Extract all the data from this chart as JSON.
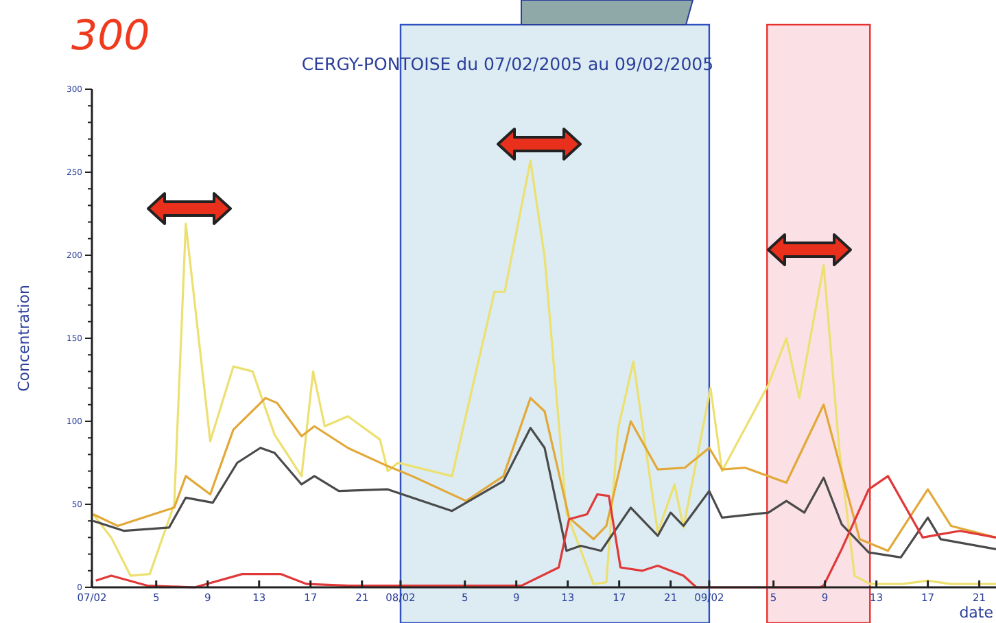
{
  "chart_data": {
    "type": "line",
    "title": "CERGY-PONTOISE du 07/02/2005 au 09/02/2005",
    "xlabel": "date",
    "ylabel": "Concentration",
    "annotations": [
      "300"
    ],
    "xlim": [
      "2005-02-07T00:00",
      "2005-02-09T22:18"
    ],
    "ylim": [
      0,
      300
    ],
    "xticks": [
      {
        "value": "2005-02-07T00:00",
        "label": "07/02"
      },
      {
        "value": "2005-02-07T05:00",
        "label": "5"
      },
      {
        "value": "2005-02-07T09:00",
        "label": "9"
      },
      {
        "value": "2005-02-07T13:00",
        "label": "13"
      },
      {
        "value": "2005-02-07T17:00",
        "label": "17"
      },
      {
        "value": "2005-02-07T21:00",
        "label": "21"
      },
      {
        "value": "2005-02-08T00:00",
        "label": "08/02"
      },
      {
        "value": "2005-02-08T05:00",
        "label": "5"
      },
      {
        "value": "2005-02-08T09:00",
        "label": "9"
      },
      {
        "value": "2005-02-08T13:00",
        "label": "13"
      },
      {
        "value": "2005-02-08T17:00",
        "label": "17"
      },
      {
        "value": "2005-02-08T21:00",
        "label": "21"
      },
      {
        "value": "2005-02-09T00:00",
        "label": "09/02"
      },
      {
        "value": "2005-02-09T05:00",
        "label": "5"
      },
      {
        "value": "2005-02-09T09:00",
        "label": "9"
      },
      {
        "value": "2005-02-09T13:00",
        "label": "13"
      },
      {
        "value": "2005-02-09T17:00",
        "label": "17"
      },
      {
        "value": "2005-02-09T21:00",
        "label": "21"
      }
    ],
    "yticks": [
      0,
      {
        "value": 10,
        "label": null
      },
      {
        "value": 20,
        "label": null
      },
      {
        "value": 30,
        "label": null
      },
      {
        "value": 40,
        "label": null
      },
      50,
      {
        "value": 60,
        "label": null
      },
      {
        "value": 70,
        "label": null
      },
      {
        "value": 80,
        "label": null
      },
      {
        "value": 90,
        "label": null
      },
      100,
      {
        "value": 110,
        "label": null
      },
      {
        "value": 120,
        "label": null
      },
      {
        "value": 130,
        "label": null
      },
      {
        "value": 140,
        "label": null
      },
      150,
      {
        "value": 160,
        "label": null
      },
      {
        "value": 170,
        "label": null
      },
      {
        "value": 180,
        "label": null
      },
      {
        "value": 190,
        "label": null
      },
      200,
      {
        "value": 210,
        "label": null
      },
      {
        "value": 220,
        "label": null
      },
      {
        "value": 230,
        "label": null
      },
      {
        "value": 240,
        "label": null
      },
      250,
      {
        "value": 260,
        "label": null
      },
      {
        "value": 270,
        "label": null
      },
      {
        "value": 280,
        "label": null
      },
      {
        "value": 290,
        "label": null
      },
      300
    ],
    "grid": false,
    "marker": "none",
    "line_style": "solid",
    "bands": [
      {
        "axis": "x",
        "from": "2005-02-08T00:00",
        "to": "2005-02-09T00:00",
        "color": "#dcecf2"
      },
      {
        "axis": "x",
        "from": "2005-02-09T04:30",
        "to": "2005-02-09T12:30",
        "color": "#fbe0e6"
      }
    ],
    "series": [
      {
        "color": "#ece070",
        "x": [
          "2005-02-07T00:06",
          "2005-02-07T01:30",
          "2005-02-07T03:00",
          "2005-02-07T04:30",
          "2005-02-07T06:24",
          "2005-02-07T07:18",
          "2005-02-07T09:12",
          "2005-02-07T11:00",
          "2005-02-07T12:30",
          "2005-02-07T14:12",
          "2005-02-07T16:18",
          "2005-02-07T17:12",
          "2005-02-07T18:06",
          "2005-02-07T19:54",
          "2005-02-07T22:24",
          "2005-02-07T23:00",
          "2005-02-07T23:48",
          "2005-02-08T04:00",
          "2005-02-08T07:18",
          "2005-02-08T08:06",
          "2005-02-08T10:06",
          "2005-02-08T11:12",
          "2005-02-08T12:54",
          "2005-02-08T15:00",
          "2005-02-08T16:00",
          "2005-02-08T16:54",
          "2005-02-08T18:06",
          "2005-02-08T20:00",
          "2005-02-08T21:18",
          "2005-02-08T22:00",
          "2005-02-09T00:06",
          "2005-02-09T01:00",
          "2005-02-09T04:36",
          "2005-02-09T06:00",
          "2005-02-09T07:00",
          "2005-02-09T08:54",
          "2005-02-09T10:06",
          "2005-02-09T11:18",
          "2005-02-09T12:30",
          "2005-02-09T15:00",
          "2005-02-09T17:00",
          "2005-02-09T18:48",
          "2005-02-09T22:18"
        ],
        "values": [
          44,
          30,
          7,
          8,
          50,
          219,
          88,
          133,
          130,
          92,
          67,
          130,
          97,
          103,
          89,
          70,
          75,
          67,
          178,
          178,
          257,
          199,
          45,
          2,
          3,
          95,
          136,
          33,
          62,
          36,
          120,
          70,
          122,
          150,
          114,
          194,
          84,
          7,
          2,
          2,
          4,
          2,
          2
        ]
      },
      {
        "color": "#e2a838",
        "x": [
          "2005-02-07T00:06",
          "2005-02-07T02:00",
          "2005-02-07T06:24",
          "2005-02-07T07:18",
          "2005-02-07T09:12",
          "2005-02-07T11:00",
          "2005-02-07T13:30",
          "2005-02-07T14:24",
          "2005-02-07T16:18",
          "2005-02-07T17:18",
          "2005-02-07T19:54",
          "2005-02-07T23:00",
          "2005-02-08T00:54",
          "2005-02-08T05:06",
          "2005-02-08T08:00",
          "2005-02-08T10:06",
          "2005-02-08T11:12",
          "2005-02-08T13:06",
          "2005-02-08T15:00",
          "2005-02-08T16:00",
          "2005-02-08T17:54",
          "2005-02-08T20:00",
          "2005-02-08T22:06",
          "2005-02-09T00:00",
          "2005-02-09T01:00",
          "2005-02-09T02:48",
          "2005-02-09T06:00",
          "2005-02-09T08:54",
          "2005-02-09T11:42",
          "2005-02-09T13:54",
          "2005-02-09T17:00",
          "2005-02-09T18:48",
          "2005-02-09T22:18"
        ],
        "values": [
          44,
          37,
          48,
          67,
          56,
          95,
          114,
          111,
          91,
          97,
          84,
          73,
          67,
          52,
          67,
          114,
          106,
          42,
          29,
          37,
          100,
          71,
          72,
          84,
          71,
          72,
          63,
          110,
          29,
          22,
          59,
          37,
          30
        ]
      },
      {
        "color": "#4a4a4a",
        "x": [
          "2005-02-07T00:06",
          "2005-02-07T02:30",
          "2005-02-07T06:00",
          "2005-02-07T07:18",
          "2005-02-07T09:24",
          "2005-02-07T11:18",
          "2005-02-07T13:06",
          "2005-02-07T14:12",
          "2005-02-07T16:18",
          "2005-02-07T17:18",
          "2005-02-07T19:12",
          "2005-02-07T23:00",
          "2005-02-08T00:54",
          "2005-02-08T04:00",
          "2005-02-08T08:00",
          "2005-02-08T10:06",
          "2005-02-08T11:12",
          "2005-02-08T12:54",
          "2005-02-08T14:00",
          "2005-02-08T15:36",
          "2005-02-08T17:54",
          "2005-02-08T20:00",
          "2005-02-08T21:00",
          "2005-02-08T22:00",
          "2005-02-09T00:00",
          "2005-02-09T01:00",
          "2005-02-09T04:36",
          "2005-02-09T06:00",
          "2005-02-09T07:24",
          "2005-02-09T08:54",
          "2005-02-09T10:18",
          "2005-02-09T12:24",
          "2005-02-09T14:54",
          "2005-02-09T17:00",
          "2005-02-09T18:00",
          "2005-02-09T22:18"
        ],
        "values": [
          40,
          34,
          36,
          54,
          51,
          75,
          84,
          81,
          62,
          67,
          58,
          59,
          54,
          46,
          64,
          96,
          84,
          22,
          25,
          22,
          48,
          31,
          45,
          37,
          58,
          42,
          45,
          52,
          45,
          66,
          38,
          21,
          18,
          42,
          29,
          23
        ]
      },
      {
        "color": "#e03838",
        "x": [
          "2005-02-07T00:18",
          "2005-02-07T01:30",
          "2005-02-07T04:18",
          "2005-02-07T08:00",
          "2005-02-07T11:42",
          "2005-02-07T14:42",
          "2005-02-07T16:42",
          "2005-02-07T20:00",
          "2005-02-08T09:24",
          "2005-02-08T12:18",
          "2005-02-08T13:06",
          "2005-02-08T14:30",
          "2005-02-08T15:18",
          "2005-02-08T16:12",
          "2005-02-08T17:06",
          "2005-02-08T18:48",
          "2005-02-08T20:00",
          "2005-02-08T22:00",
          "2005-02-08T23:00",
          "2005-02-09T08:36",
          "2005-02-09T08:54",
          "2005-02-09T10:18",
          "2005-02-09T12:24",
          "2005-02-09T13:54",
          "2005-02-09T16:36",
          "2005-02-09T18:00",
          "2005-02-09T19:30",
          "2005-02-09T22:18"
        ],
        "values": [
          4,
          7,
          1,
          0,
          8,
          8,
          2,
          1,
          1,
          12,
          41,
          44,
          56,
          55,
          12,
          10,
          13,
          7,
          0,
          0,
          1,
          23,
          59,
          67,
          30,
          32,
          34,
          30
        ]
      }
    ]
  }
}
